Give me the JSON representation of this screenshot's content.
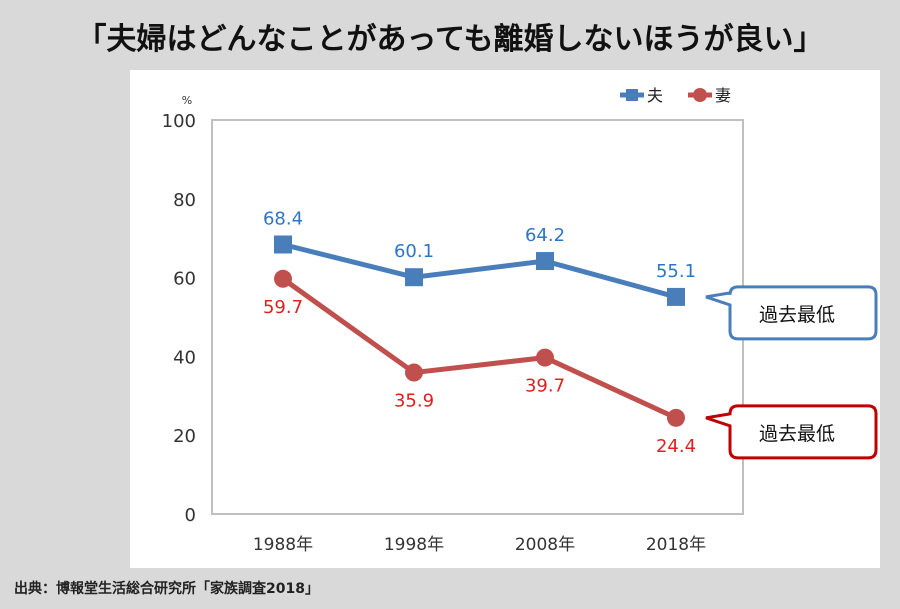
{
  "title": "「夫婦はどんなことがあっても離婚しないほうが良い」",
  "source": "出典：博報堂生活総合研究所「家族調査2018」",
  "chart_data": {
    "type": "line",
    "categories": [
      "1988年",
      "1998年",
      "2008年",
      "2018年"
    ],
    "series": [
      {
        "name": "夫",
        "values": [
          68.4,
          60.1,
          64.2,
          55.1
        ],
        "color": "#4a7ebb",
        "label_color": "#2e75c5",
        "marker": "square"
      },
      {
        "name": "妻",
        "values": [
          59.7,
          35.9,
          39.7,
          24.4
        ],
        "color": "#c0504d",
        "label_color": "#e02020",
        "marker": "circle"
      }
    ],
    "ylabel": "%",
    "ylim": [
      0,
      100
    ],
    "yticks": [
      0,
      20,
      40,
      60,
      80,
      100
    ],
    "grid": false,
    "legend": "top-right",
    "annotations": [
      {
        "text": "過去最低",
        "series": "夫",
        "color": "#4a7ebb"
      },
      {
        "text": "過去最低",
        "series": "妻",
        "color": "#c00000"
      }
    ]
  }
}
